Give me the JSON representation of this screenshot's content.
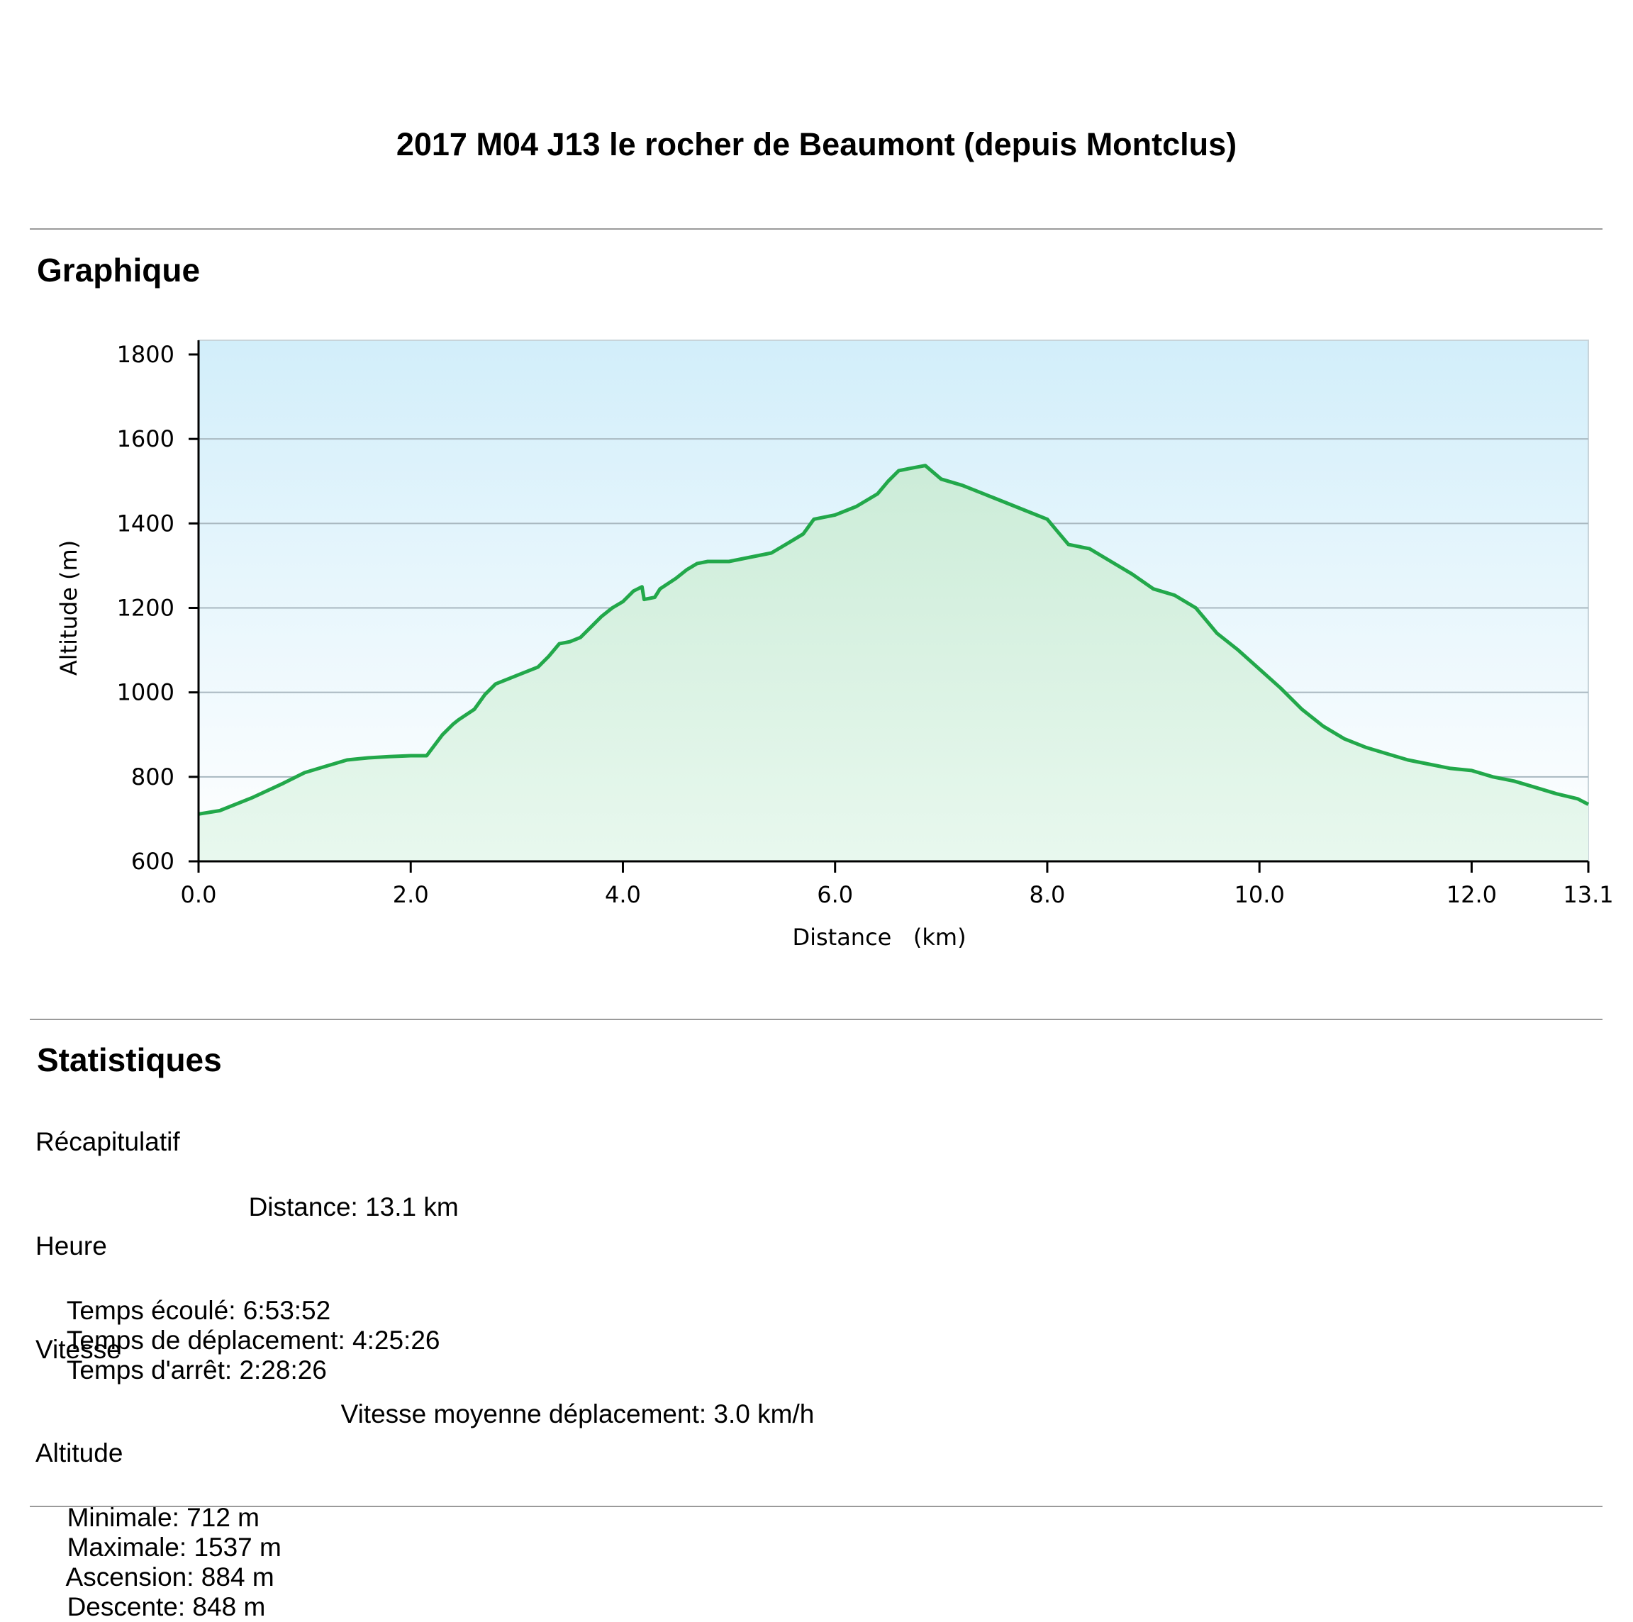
{
  "page": {
    "title": "2017 M04 J13 le rocher de Beaumont (depuis Montclus)",
    "section_chart": "Graphique",
    "section_stats": "Statistiques"
  },
  "stats": {
    "recap": {
      "heading": "Récapitulatif",
      "distance": "Distance: 13.1 km"
    },
    "time": {
      "heading": "Heure",
      "elapsed": "Temps écoulé: 6:53:52",
      "moving": "Temps de déplacement: 4:25:26",
      "stopped": "Temps d'arrêt: 2:28:26"
    },
    "speed": {
      "heading": "Vitesse",
      "moving_avg": "Vitesse moyenne déplacement: 3.0 km/h"
    },
    "altitude": {
      "heading": "Altitude",
      "min": "Minimale: 712 m",
      "max": "Maximale: 1537 m",
      "ascent": "Ascension: 884 m",
      "descent": "Descente: 848 m"
    }
  },
  "colors": {
    "line": "#22a84a",
    "fill_top": "#ccecd8",
    "fill_bottom": "#e8f8ee",
    "sky_top": "#d2eefa",
    "sky_bottom": "#ffffff",
    "grid": "#a9b8c0"
  },
  "chart_data": {
    "type": "area",
    "xlabel": "Distance   (km)",
    "ylabel": "Altitude (m)",
    "xlim": [
      0,
      13.1
    ],
    "ylim": [
      600,
      1800
    ],
    "x_ticks": [
      "0.0",
      "2.0",
      "4.0",
      "6.0",
      "8.0",
      "10.0",
      "12.0",
      "13.1"
    ],
    "y_ticks": [
      "600",
      "800",
      "1000",
      "1200",
      "1400",
      "1600",
      "1800"
    ],
    "grid": true,
    "series": [
      {
        "x": [
          0,
          0.2,
          0.5,
          0.8,
          1.0,
          1.2,
          1.4,
          1.6,
          1.8,
          2.0,
          2.15,
          2.3,
          2.4,
          2.45,
          2.6,
          2.7,
          2.8,
          3.0,
          3.2,
          3.3,
          3.4,
          3.5,
          3.6,
          3.7,
          3.8,
          3.9,
          4.0,
          4.1,
          4.18,
          4.2,
          4.3,
          4.35,
          4.5,
          4.6,
          4.7,
          4.8,
          5.0,
          5.2,
          5.4,
          5.5,
          5.6,
          5.7,
          5.8,
          6.0,
          6.2,
          6.4,
          6.5,
          6.6,
          6.7,
          6.85,
          7.0,
          7.2,
          7.4,
          7.6,
          7.8,
          8.0,
          8.1,
          8.2,
          8.4,
          8.6,
          8.8,
          9.0,
          9.2,
          9.4,
          9.5,
          9.6,
          9.8,
          10.0,
          10.2,
          10.4,
          10.6,
          10.8,
          11.0,
          11.2,
          11.4,
          11.6,
          11.8,
          12.0,
          12.2,
          12.4,
          12.6,
          12.8,
          13.0,
          13.1
        ],
        "y": [
          712,
          720,
          750,
          785,
          810,
          825,
          840,
          845,
          848,
          850,
          850,
          900,
          925,
          935,
          960,
          995,
          1020,
          1040,
          1060,
          1085,
          1115,
          1120,
          1130,
          1155,
          1180,
          1200,
          1215,
          1240,
          1250,
          1220,
          1225,
          1245,
          1270,
          1290,
          1305,
          1310,
          1310,
          1320,
          1330,
          1345,
          1360,
          1375,
          1410,
          1420,
          1440,
          1470,
          1500,
          1525,
          1530,
          1537,
          1505,
          1490,
          1470,
          1450,
          1430,
          1410,
          1380,
          1350,
          1340,
          1310,
          1280,
          1245,
          1230,
          1200,
          1170,
          1140,
          1100,
          1055,
          1010,
          960,
          920,
          890,
          870,
          855,
          840,
          830,
          820,
          815,
          800,
          790,
          775,
          760,
          748,
          735
        ]
      }
    ]
  }
}
